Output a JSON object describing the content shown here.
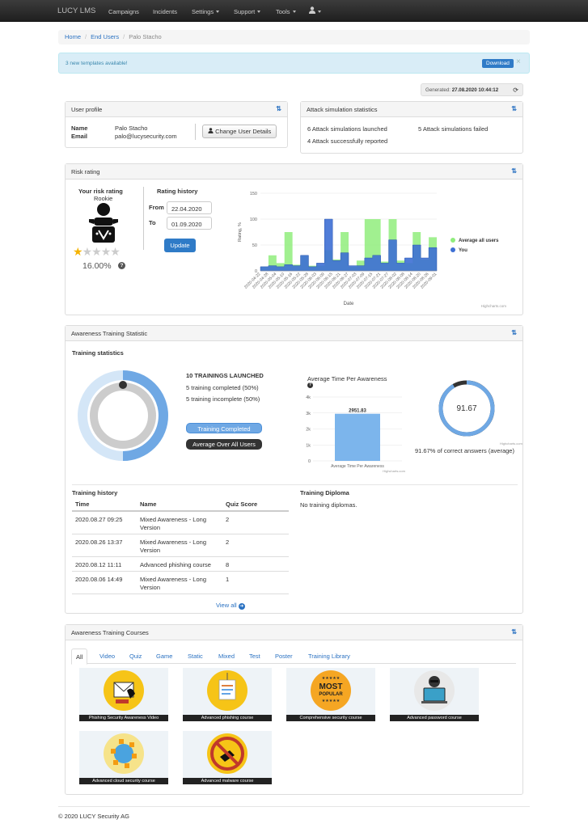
{
  "nav": {
    "brand": "LUCY LMS",
    "items": [
      "Campaigns",
      "Incidents",
      "Settings",
      "Support",
      "Tools"
    ]
  },
  "breadcrumb": [
    "Home",
    "End Users",
    "Palo Stacho"
  ],
  "alert": {
    "text": "3 new templates available!",
    "button": "Download",
    "close": "×"
  },
  "generated": {
    "label": "Generated:",
    "value": "27.08.2020 10:44:12"
  },
  "user_profile": {
    "title": "User profile",
    "name_label": "Name",
    "name": "Palo Stacho",
    "email_label": "Email",
    "email": "palo@lucysecurity.com",
    "change_button": "Change User Details"
  },
  "attack_stats": {
    "title": "Attack simulation statistics",
    "launched": "6 Attack simulations launched",
    "failed": "5 Attack simulations failed",
    "reported": "4 Attack successfully reported"
  },
  "risk": {
    "title": "Risk rating",
    "your_rating": "Your risk rating",
    "level": "Rookie",
    "percent": "16.00%",
    "stars_filled": 1,
    "stars_total": 5,
    "history_title": "Rating history",
    "from_label": "From",
    "from": "22.04.2020",
    "to_label": "To",
    "to": "01.09.2020",
    "update_button": "Update",
    "credits": "Highcharts.com"
  },
  "chart_data": {
    "type": "area",
    "ylabel": "Rating, %",
    "xlabel": "Date",
    "ylim": [
      0,
      150
    ],
    "yticks": [
      0,
      50,
      100,
      150
    ],
    "categories": [
      "2020-04-22",
      "2020-04-28",
      "2020-05-04",
      "2020-05-10",
      "2020-05-16",
      "2020-05-22",
      "2020-05-28",
      "2020-06-03",
      "2020-06-09",
      "2020-06-15",
      "2020-06-21",
      "2020-06-27",
      "2020-07-03",
      "2020-07-09",
      "2020-07-15",
      "2020-07-21",
      "2020-07-27",
      "2020-08-02",
      "2020-08-08",
      "2020-08-14",
      "2020-08-20",
      "2020-08-26",
      "2020-09-01"
    ],
    "series": [
      {
        "name": "Average all users",
        "color": "#90ed7d",
        "values": [
          8,
          30,
          15,
          75,
          12,
          30,
          10,
          10,
          40,
          22,
          75,
          8,
          20,
          100,
          100,
          18,
          100,
          20,
          15,
          75,
          22,
          65,
          22
        ]
      },
      {
        "name": "You",
        "color": "#3d6fd4",
        "values": [
          8,
          10,
          8,
          12,
          10,
          30,
          8,
          15,
          100,
          20,
          35,
          10,
          10,
          25,
          30,
          15,
          60,
          15,
          25,
          50,
          25,
          45,
          8
        ]
      }
    ],
    "legend": "right"
  },
  "awareness": {
    "title": "Awareness Training Statistic",
    "subtitle": "Training statistics",
    "launched": "10 TRAININGS LAUNCHED",
    "completed": "5 training completed (50%)",
    "incomplete": "5 training incomplete (50%)",
    "pill_completed": "Training Completed",
    "pill_average": "Average Over All Users",
    "completed_fraction": 0.5,
    "avg_time_title": "Average Time Per Awareness",
    "avg_time_value": "2951.83",
    "avg_time_number": 2951.83,
    "avg_time_ylim": [
      0,
      4000
    ],
    "avg_time_yticks": [
      "0",
      "1k",
      "2k",
      "3k",
      "4k"
    ],
    "avg_time_category": "Average Time Per Awareness",
    "credits": "Highcharts.com",
    "gauge_value": "91.67",
    "gauge_fraction": 0.9167,
    "gauge_caption": "91.67% of correct answers (average)"
  },
  "history": {
    "title": "Training history",
    "headers": [
      "Time",
      "Name",
      "Quiz Score"
    ],
    "rows": [
      [
        "2020.08.27 09:25",
        "Mixed Awareness - Long Version",
        "2"
      ],
      [
        "2020.08.26 13:37",
        "Mixed Awareness - Long Version",
        "2"
      ],
      [
        "2020.08.12 11:11",
        "Advanced phishing course",
        "8"
      ],
      [
        "2020.08.06 14:49",
        "Mixed Awareness - Long Version",
        "1"
      ]
    ],
    "view_all": "View all"
  },
  "diploma": {
    "title": "Training Diploma",
    "text": "No training diplomas."
  },
  "courses": {
    "title": "Awareness Training Courses",
    "tabs": [
      "All",
      "Video",
      "Quiz",
      "Game",
      "Static",
      "Mixed",
      "Test",
      "Poster",
      "Training Library"
    ],
    "items": [
      "Phishing Security Awareness Video",
      "Advanced phishing course",
      "Comprehensive security course",
      "Advanced password course",
      "Advanced cloud security course",
      "Advanced malware course"
    ],
    "poster_text": [
      "MOST",
      "POPULAR"
    ]
  },
  "footer": "© 2020 LUCY Security AG"
}
